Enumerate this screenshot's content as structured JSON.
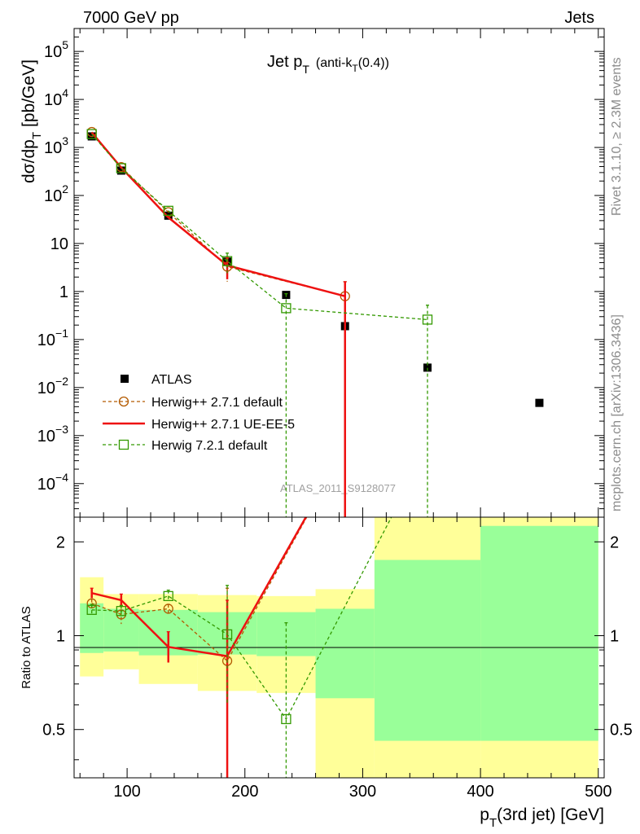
{
  "header": {
    "left": "7000 GeV pp",
    "right": "Jets"
  },
  "plot_title": {
    "main": "Jet p",
    "main_sub": "T",
    "paren": "(anti-k",
    "paren_sub": "T",
    "paren_end": "(0.4))"
  },
  "side": {
    "rivet": "Rivet 3.1.10, ≥ 2.3M events",
    "mcplots": "mcplots.cern.ch [arXiv:1306.3436]"
  },
  "watermark": "ATLAS_2011_S9128077",
  "axes": {
    "ylabel_main": "dσ/dp",
    "ylabel_main_sub": "T",
    "ylabel_main_unit": "[pb/GeV]",
    "ylabel_ratio": "Ratio to ATLAS",
    "xlabel": "p",
    "xlabel_sub": "T",
    "xlabel_rest": "(3rd jet) [GeV]",
    "x_ticks": [
      "100",
      "200",
      "300",
      "400",
      "500"
    ],
    "y_ticks_main": [
      {
        "base": "10",
        "exp": "5"
      },
      {
        "base": "10",
        "exp": "4"
      },
      {
        "base": "10",
        "exp": "3"
      },
      {
        "base": "10",
        "exp": "2"
      },
      {
        "base": "10",
        "exp": ""
      },
      {
        "base": "1",
        "exp": ""
      },
      {
        "base": "10",
        "exp": "−1"
      },
      {
        "base": "10",
        "exp": "−2"
      },
      {
        "base": "10",
        "exp": "−3"
      },
      {
        "base": "10",
        "exp": "−4"
      }
    ],
    "y_ticks_ratio": [
      "2",
      "1",
      "0.5"
    ]
  },
  "legend": [
    {
      "label": "ATLAS",
      "key": "atlas"
    },
    {
      "label": "Herwig++ 2.7.1 default",
      "key": "hpp_default"
    },
    {
      "label": "Herwig++ 2.7.1 UE-EE-5",
      "key": "hpp_ueee5"
    },
    {
      "label": "Herwig 7.2.1 default",
      "key": "h7_default"
    }
  ],
  "colors": {
    "atlas": "#000000",
    "hpp_default": "#b35a00",
    "hpp_ueee5": "#ee1111",
    "h7_default": "#339900",
    "band_inner": "#99ff99",
    "band_outer": "#ffff99"
  },
  "chart_data": [
    {
      "type": "scatter",
      "scale": "log",
      "xlim": [
        55,
        505
      ],
      "ylim": [
        2e-05,
        300000
      ],
      "series": [
        {
          "name": "ATLAS",
          "x": [
            70,
            95,
            135,
            185,
            235,
            285,
            355,
            450
          ],
          "y": [
            1700,
            330,
            38,
            4.2,
            0.85,
            0.19,
            0.026,
            0.0048
          ]
        },
        {
          "name": "Herwig++ 2.7.1 default",
          "x": [
            70,
            95,
            135,
            185,
            285
          ],
          "y": [
            2100,
            390,
            45,
            3.3,
            0.8
          ],
          "yerr_lo": [
            null,
            null,
            null,
            1.6,
            null
          ],
          "yerr_hi": [
            null,
            null,
            null,
            5.0,
            1.6
          ]
        },
        {
          "name": "Herwig++ 2.7.1 UE-EE-5",
          "x": [
            70,
            95,
            135,
            185,
            285
          ],
          "y": [
            2050,
            380,
            35,
            3.5,
            0.8
          ],
          "yerr_lo": [
            null,
            null,
            null,
            1.8,
            0.0
          ],
          "yerr_hi": [
            null,
            null,
            null,
            5.3,
            1.6
          ]
        },
        {
          "name": "Herwig 7.2.1 default",
          "x": [
            70,
            95,
            135,
            185,
            235,
            355
          ],
          "y": [
            1900,
            370,
            48,
            4.3,
            0.45,
            0.26
          ],
          "yerr_lo": [
            null,
            null,
            null,
            2.4,
            0.0,
            0.0
          ],
          "yerr_hi": [
            null,
            null,
            null,
            6.3,
            0.9,
            0.52
          ]
        }
      ]
    },
    {
      "type": "line",
      "scale": "log",
      "xlim": [
        55,
        505
      ],
      "ylim": [
        0.35,
        2.4
      ],
      "bands": {
        "edges": [
          60,
          80,
          110,
          160,
          210,
          260,
          310,
          400,
          500
        ],
        "inner_lo": [
          0.88,
          0.89,
          0.865,
          0.87,
          0.86,
          0.63,
          0.46,
          0.46
        ],
        "inner_hi": [
          1.27,
          1.22,
          1.21,
          1.19,
          1.19,
          1.22,
          1.75,
          2.25
        ],
        "outer_lo": [
          0.74,
          0.78,
          0.7,
          0.665,
          0.655,
          0.35,
          0.35,
          0.35
        ],
        "outer_hi": [
          1.54,
          1.36,
          1.36,
          1.35,
          1.34,
          1.41,
          2.4,
          2.4
        ]
      },
      "series": [
        {
          "name": "Herwig++ 2.7.1 default",
          "x": [
            70,
            95,
            135,
            185,
            285
          ],
          "y": [
            1.27,
            1.17,
            1.22,
            0.83,
            4.0
          ],
          "yerr_lo": [
            1.22,
            1.09,
            1.18,
            0.35,
            null
          ],
          "yerr_hi": [
            1.31,
            1.25,
            1.26,
            1.42,
            null
          ]
        },
        {
          "name": "Herwig++ 2.7.1 UE-EE-5",
          "x": [
            70,
            95,
            135,
            185,
            285
          ],
          "y": [
            1.37,
            1.3,
            0.92,
            0.86,
            4.0
          ],
          "yerr_lo": [
            1.32,
            1.24,
            0.82,
            0.35,
            null
          ],
          "yerr_hi": [
            1.42,
            1.36,
            1.03,
            1.3,
            null
          ]
        },
        {
          "name": "Herwig 7.2.1 default",
          "x": [
            70,
            95,
            135,
            185,
            235,
            355
          ],
          "y": [
            1.21,
            1.2,
            1.34,
            1.01,
            0.54,
            4.0
          ],
          "yerr_lo": [
            1.16,
            1.15,
            1.29,
            0.6,
            0.35,
            null
          ],
          "yerr_hi": [
            1.26,
            1.25,
            1.4,
            1.45,
            1.1,
            null
          ]
        }
      ]
    }
  ]
}
